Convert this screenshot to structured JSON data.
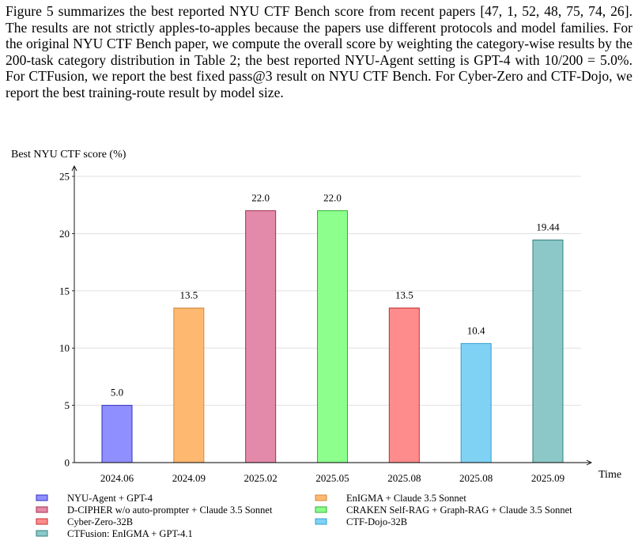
{
  "paragraph": "Figure 5 summarizes the best reported NYU CTF Bench score from recent papers [47, 1, 52, 48, 75, 74, 26]. The results are not strictly apples-to-apples because the papers use different protocols and model families. For the original NYU CTF Bench paper, we compute the overall score by weighting the category-wise results by the 200-task category distribution in Table 2; the best reported NYU-Agent setting is GPT-4 with 10/200 = 5.0%. For CTFusion, we report the best fixed pass@3 result on NYU CTF Bench. For Cyber-Zero and CTF-Dojo, we report the best training-route result by model size.",
  "chart_data": {
    "type": "bar",
    "ylabel": "Best NYU CTF score (%)",
    "xlabel": "Time",
    "ylim": [
      0,
      25
    ],
    "yticks": [
      0,
      5,
      10,
      15,
      20,
      25
    ],
    "grid": true,
    "legend_position": "bottom",
    "categories": [
      "2024.06",
      "2024.09",
      "2025.02",
      "2025.05",
      "2025.08",
      "2025.08",
      "2025.09"
    ],
    "values": [
      5.0,
      13.5,
      22.0,
      22.0,
      13.5,
      10.4,
      19.44
    ],
    "data_labels": [
      "5.0",
      "13.5",
      "22.0",
      "22.0",
      "13.5",
      "10.4",
      "19.44"
    ],
    "series": [
      {
        "name": "NYU-Agent + GPT-4",
        "fill": "#8f8fff",
        "stroke": "#3030c0"
      },
      {
        "name": "EnIGMA + Claude 3.5 Sonnet",
        "fill": "#ffb870",
        "stroke": "#d08a40"
      },
      {
        "name": "D-CIPHER w/o auto-prompter + Claude 3.5 Sonnet",
        "fill": "#e389a9",
        "stroke": "#a0304a"
      },
      {
        "name": "CRAKEN Self-RAG + Graph-RAG + Claude 3.5 Sonnet",
        "fill": "#8cff8c",
        "stroke": "#30b030"
      },
      {
        "name": "Cyber-Zero-32B",
        "fill": "#ff8c8c",
        "stroke": "#c03030"
      },
      {
        "name": "CTF-Dojo-32B",
        "fill": "#80d2f4",
        "stroke": "#30a0d0"
      },
      {
        "name": "CTFusion: EnIGMA + GPT-4.1",
        "fill": "#8cc8c8",
        "stroke": "#308080"
      }
    ]
  }
}
